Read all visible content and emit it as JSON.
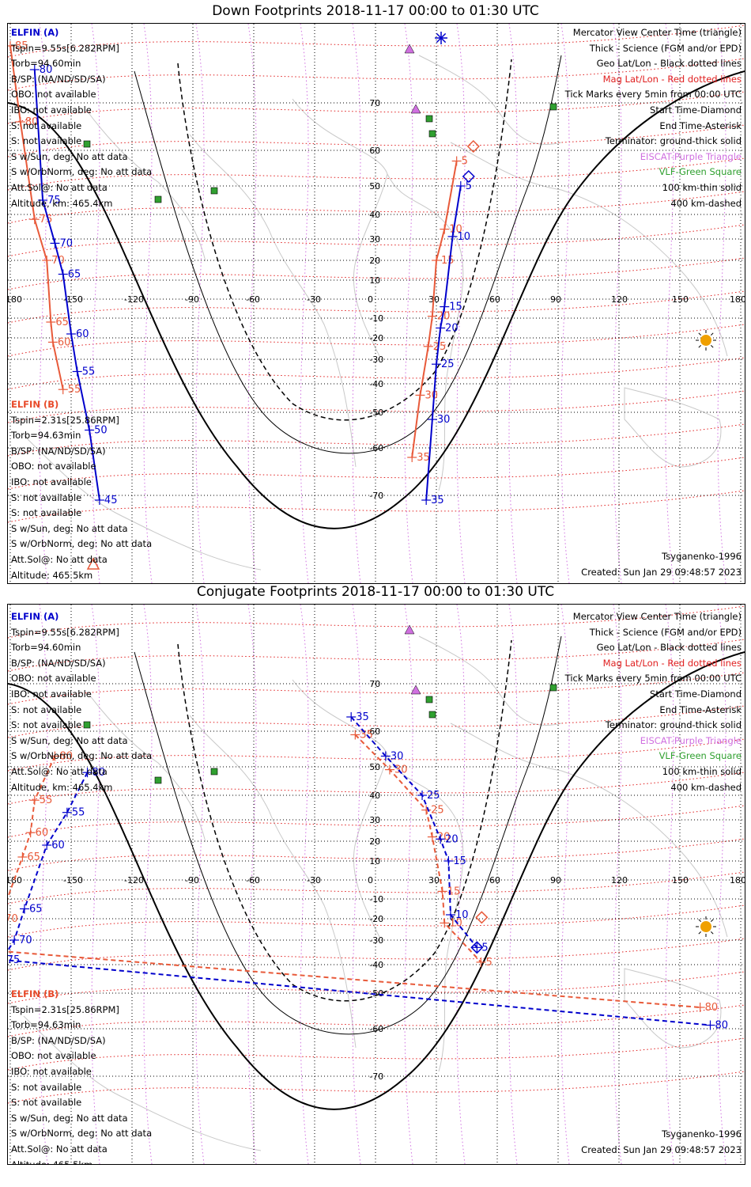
{
  "down": {
    "title": "Down Footprints 2018-11-17 00:00 to 01:30 UTC",
    "elfin_a": {
      "header": "ELFIN (A)",
      "lines": [
        "Tspin=9.55s[6.282RPM]",
        "Torb=94.60min",
        "B/SP: (NA/ND/SD/SA)",
        "OBO: not available",
        "IBO: not available",
        "S: not available",
        "S: not available",
        "S w/Sun, deg: No att data",
        "S w/OrbNorm, deg: No att data",
        "Att.Sol@: No att data",
        "Altitude, km: 465.4km"
      ]
    },
    "elfin_b": {
      "header": "ELFIN (B)",
      "lines": [
        "Tspin=2.31s[25.86RPM]",
        "Torb=94.63min",
        "B/SP: (NA/ND/SD/SA)",
        "OBO: not available",
        "IBO: not available",
        "S: not available",
        "S: not available",
        "S w/Sun, deg: No att data",
        "S w/OrbNorm, deg: No att data",
        "Att.Sol@: No att data",
        "Altitude: 465.5km"
      ]
    },
    "legend": [
      {
        "text": "Mercator View Center Time (triangle)",
        "color": "#000000"
      },
      {
        "text": "Thick - Science (FGM and/or EPD)",
        "color": "#000000"
      },
      {
        "text": "Geo Lat/Lon - Black dotted lines",
        "color": "#000000"
      },
      {
        "text": "Mag Lat/Lon - Red dotted lines",
        "color": "#e02020"
      },
      {
        "text": "Tick Marks every 5min from 00:00 UTC",
        "color": "#000000"
      },
      {
        "text": "Start Time-Diamond",
        "color": "#000000"
      },
      {
        "text": "End Time-Asterisk",
        "color": "#000000"
      },
      {
        "text": "Terminator: ground-thick solid",
        "color": "#000000"
      },
      {
        "text": "EISCAT-Purple Triangle",
        "color": "#d070e0"
      },
      {
        "text": "VLF-Green Square",
        "color": "#30a030"
      },
      {
        "text": "100 km-thin solid",
        "color": "#000000"
      },
      {
        "text": "400 km-dashed",
        "color": "#000000"
      }
    ],
    "model": "Tsyganenko-1996",
    "created": "Created: Sun Jan 29 09:48:57 2023",
    "lon_labels": [
      "-180",
      "-150",
      "-120",
      "-90",
      "-60",
      "-30",
      "0",
      "30",
      "60",
      "90",
      "120",
      "150",
      "180"
    ],
    "lat_labels": [
      "70",
      "60",
      "50",
      "40",
      "30",
      "20",
      "10",
      "-10",
      "-20",
      "-30",
      "-40",
      "-50",
      "-60",
      "-70"
    ],
    "ticks_a": [
      {
        "t": "5",
        "lon": 42,
        "lat": 50
      },
      {
        "t": "10",
        "lon": 38,
        "lat": 31
      },
      {
        "t": "15",
        "lon": 34,
        "lat": -4
      },
      {
        "t": "20",
        "lon": 32,
        "lat": -15
      },
      {
        "t": "25",
        "lon": 30,
        "lat": -32
      },
      {
        "t": "30",
        "lon": 28,
        "lat": -52
      },
      {
        "t": "35",
        "lon": 25,
        "lat": -71
      }
    ],
    "ticks_a_red": [
      {
        "t": "5",
        "lon": 40,
        "lat": 57
      },
      {
        "t": "10",
        "lon": 34,
        "lat": 34
      },
      {
        "t": "15",
        "lon": 30,
        "lat": 20
      },
      {
        "t": "20",
        "lon": 28,
        "lat": -9
      },
      {
        "t": "25",
        "lon": 26,
        "lat": -24
      },
      {
        "t": "30",
        "lon": 22,
        "lat": -44
      },
      {
        "t": "35",
        "lon": 18,
        "lat": -62
      }
    ],
    "ticks_b": [
      {
        "t": "80",
        "lon": -168,
        "lat": 77
      },
      {
        "t": "75",
        "lon": -164,
        "lat": 45
      },
      {
        "t": "70",
        "lon": -158,
        "lat": 28
      },
      {
        "t": "65",
        "lon": -154,
        "lat": 13
      },
      {
        "t": "60",
        "lon": -150,
        "lat": -18
      },
      {
        "t": "55",
        "lon": -147,
        "lat": -35
      },
      {
        "t": "50",
        "lon": -141,
        "lat": -55
      },
      {
        "t": "45",
        "lon": -136,
        "lat": -71
      }
    ],
    "ticks_b_red": [
      {
        "t": "85",
        "lon": -180,
        "lat": 82
      },
      {
        "t": "80",
        "lon": -175,
        "lat": 66
      },
      {
        "t": "75",
        "lon": -168,
        "lat": 38
      },
      {
        "t": "70",
        "lon": -162,
        "lat": 20
      },
      {
        "t": "65",
        "lon": -160,
        "lat": -12
      },
      {
        "t": "60",
        "lon": -159,
        "lat": -22
      },
      {
        "t": "55",
        "lon": -154,
        "lat": -42
      }
    ]
  },
  "conj": {
    "title": "Conjugate Footprints 2018-11-17 00:00 to 01:30 UTC",
    "elfin_a": {
      "header": "ELFIN (A)",
      "lines": [
        "Tspin=9.55s[6.282RPM]",
        "Torb=94.60min",
        "B/SP: (NA/ND/SD/SA)",
        "OBO: not available",
        "IBO: not available",
        "S: not available",
        "S: not available",
        "S w/Sun, deg: No att data",
        "S w/OrbNorm, deg: No att data",
        "Att.Sol@: No att data",
        "Altitude, km: 465.4km"
      ]
    },
    "elfin_b": {
      "header": "ELFIN (B)",
      "lines": [
        "Tspin=2.31s[25.86RPM]",
        "Torb=94.63min",
        "B/SP: (NA/ND/SD/SA)",
        "OBO: not available",
        "IBO: not available",
        "S: not available",
        "S: not available",
        "S w/Sun, deg: No att data",
        "S w/OrbNorm, deg: No att data",
        "Att.Sol@: No att data",
        "Altitude: 465.5km"
      ]
    },
    "legend": [
      {
        "text": "Mercator View Center Time (triangle)",
        "color": "#000000"
      },
      {
        "text": "Thick - Science (FGM and/or EPD)",
        "color": "#000000"
      },
      {
        "text": "Geo Lat/Lon - Black dotted lines",
        "color": "#000000"
      },
      {
        "text": "Mag Lat/Lon - Red dotted lines",
        "color": "#e02020"
      },
      {
        "text": "Tick Marks every 5min from 00:00 UTC",
        "color": "#000000"
      },
      {
        "text": "Start Time-Diamond",
        "color": "#000000"
      },
      {
        "text": "End Time-Asterisk",
        "color": "#000000"
      },
      {
        "text": "Terminator: ground-thick solid",
        "color": "#000000"
      },
      {
        "text": "EISCAT-Purple Triangle",
        "color": "#d070e0"
      },
      {
        "text": "VLF-Green Square",
        "color": "#30a030"
      },
      {
        "text": "100 km-thin solid",
        "color": "#000000"
      },
      {
        "text": "400 km-dashed",
        "color": "#000000"
      }
    ],
    "model": "Tsyganenko-1996",
    "created": "Created: Sun Jan 29 09:48:57 2023",
    "lon_labels": [
      "-180",
      "-150",
      "-120",
      "-90",
      "-60",
      "-30",
      "0",
      "30",
      "60",
      "90",
      "120",
      "150",
      "180"
    ],
    "lat_labels": [
      "70",
      "60",
      "50",
      "40",
      "30",
      "20",
      "10",
      "-10",
      "-20",
      "-30",
      "-40",
      "-50",
      "-60",
      "-70"
    ],
    "ticks_a": [
      {
        "t": "35",
        "lon": -12,
        "lat": 63
      },
      {
        "t": "30",
        "lon": 5,
        "lat": 53
      },
      {
        "t": "25",
        "lon": 23,
        "lat": 40
      },
      {
        "t": "20",
        "lon": 32,
        "lat": 21
      },
      {
        "t": "15",
        "lon": 36,
        "lat": 10
      },
      {
        "t": "10",
        "lon": 37,
        "lat": -18
      },
      {
        "t": "5",
        "lon": 50,
        "lat": -33
      }
    ],
    "ticks_a_red": [
      {
        "t": "35",
        "lon": -10,
        "lat": 59
      },
      {
        "t": "30",
        "lon": 7,
        "lat": 49
      },
      {
        "t": "25",
        "lon": 25,
        "lat": 34
      },
      {
        "t": "20",
        "lon": 28,
        "lat": 22
      },
      {
        "t": "15",
        "lon": 33,
        "lat": -6
      },
      {
        "t": "10",
        "lon": 34,
        "lat": -22
      },
      {
        "t": "5",
        "lon": 52,
        "lat": -39
      }
    ],
    "ticks_b": [
      {
        "t": "80",
        "lon": -142,
        "lat": 48
      },
      {
        "t": "55",
        "lon": -152,
        "lat": 33
      },
      {
        "t": "60",
        "lon": -162,
        "lat": 18
      },
      {
        "t": "65",
        "lon": -173,
        "lat": -15
      },
      {
        "t": "70",
        "lon": -178,
        "lat": -30
      },
      {
        "t": "75",
        "lon": -184,
        "lat": -38
      },
      {
        "t": "80",
        "lon": 165,
        "lat": -59
      }
    ],
    "ticks_b_red": [
      {
        "t": "80",
        "lon": -158,
        "lat": 53
      },
      {
        "t": "55",
        "lon": -168,
        "lat": 38
      },
      {
        "t": "60",
        "lon": -170,
        "lat": 24
      },
      {
        "t": "65",
        "lon": -174,
        "lat": 12
      },
      {
        "t": "70",
        "lon": -185,
        "lat": -20
      },
      {
        "t": "75",
        "lon": -192,
        "lat": -34
      },
      {
        "t": "80",
        "lon": 160,
        "lat": -54
      }
    ]
  },
  "colors": {
    "elfin_a": "#0000cc",
    "elfin_b": "#e85a3a",
    "mag_grid": "#e02020",
    "eiscat": "#d070e0",
    "vlf": "#30a030",
    "sun": "#f0a000"
  }
}
